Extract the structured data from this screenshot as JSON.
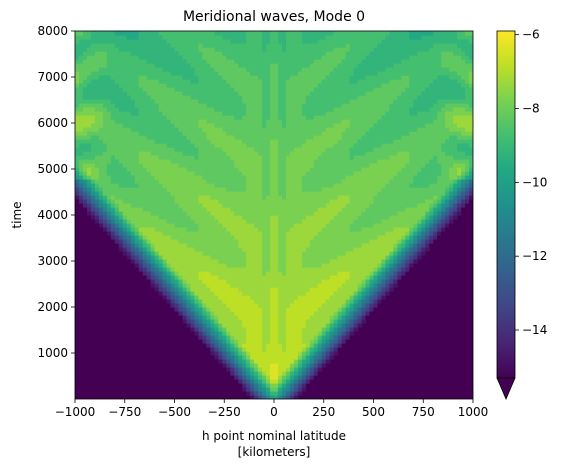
{
  "chart_data": {
    "type": "heatmap",
    "title": "Meridional waves, Mode 0",
    "xlabel": "h point nominal latitude",
    "xlabel_units": "[kilometers]",
    "ylabel": "time",
    "xlim": [
      -1000,
      1000
    ],
    "ylim": [
      0,
      8000
    ],
    "x_ticks": [
      -1000,
      -750,
      -500,
      -250,
      0,
      250,
      500,
      750,
      1000
    ],
    "x_tick_labels": [
      "−1000",
      "−750",
      "−500",
      "−250",
      "0",
      "250",
      "500",
      "750",
      "1000"
    ],
    "y_ticks": [
      1000,
      2000,
      3000,
      4000,
      5000,
      6000,
      7000,
      8000
    ],
    "y_tick_labels": [
      "1000",
      "2000",
      "3000",
      "4000",
      "5000",
      "6000",
      "7000",
      "8000"
    ],
    "colormap": "viridis",
    "colorbar": {
      "vmin": -15.3,
      "vmax": -5.9,
      "extend": "min",
      "ticks": [
        -14,
        -12,
        -10,
        -8,
        -6
      ],
      "tick_labels": [
        "−14",
        "−12",
        "−10",
        "−8",
        "−6"
      ],
      "levels": 20
    },
    "field_description_samples": {
      "note_values": "log-amplitude; approximate readings",
      "points": [
        {
          "x": 0,
          "y": 500,
          "value": -6.2
        },
        {
          "x": 0,
          "y": 2000,
          "value": -6.3
        },
        {
          "x": 0,
          "y": 4000,
          "value": -7.2
        },
        {
          "x": 0,
          "y": 6000,
          "value": -7.5
        },
        {
          "x": -500,
          "y": 4000,
          "value": -7.4
        },
        {
          "x": -900,
          "y": 5000,
          "value": -8.2
        },
        {
          "x": -900,
          "y": 7500,
          "value": -6.5
        },
        {
          "x": -800,
          "y": 2000,
          "value": -15.3
        },
        {
          "x": 800,
          "y": 2000,
          "value": -15.3
        }
      ]
    }
  }
}
